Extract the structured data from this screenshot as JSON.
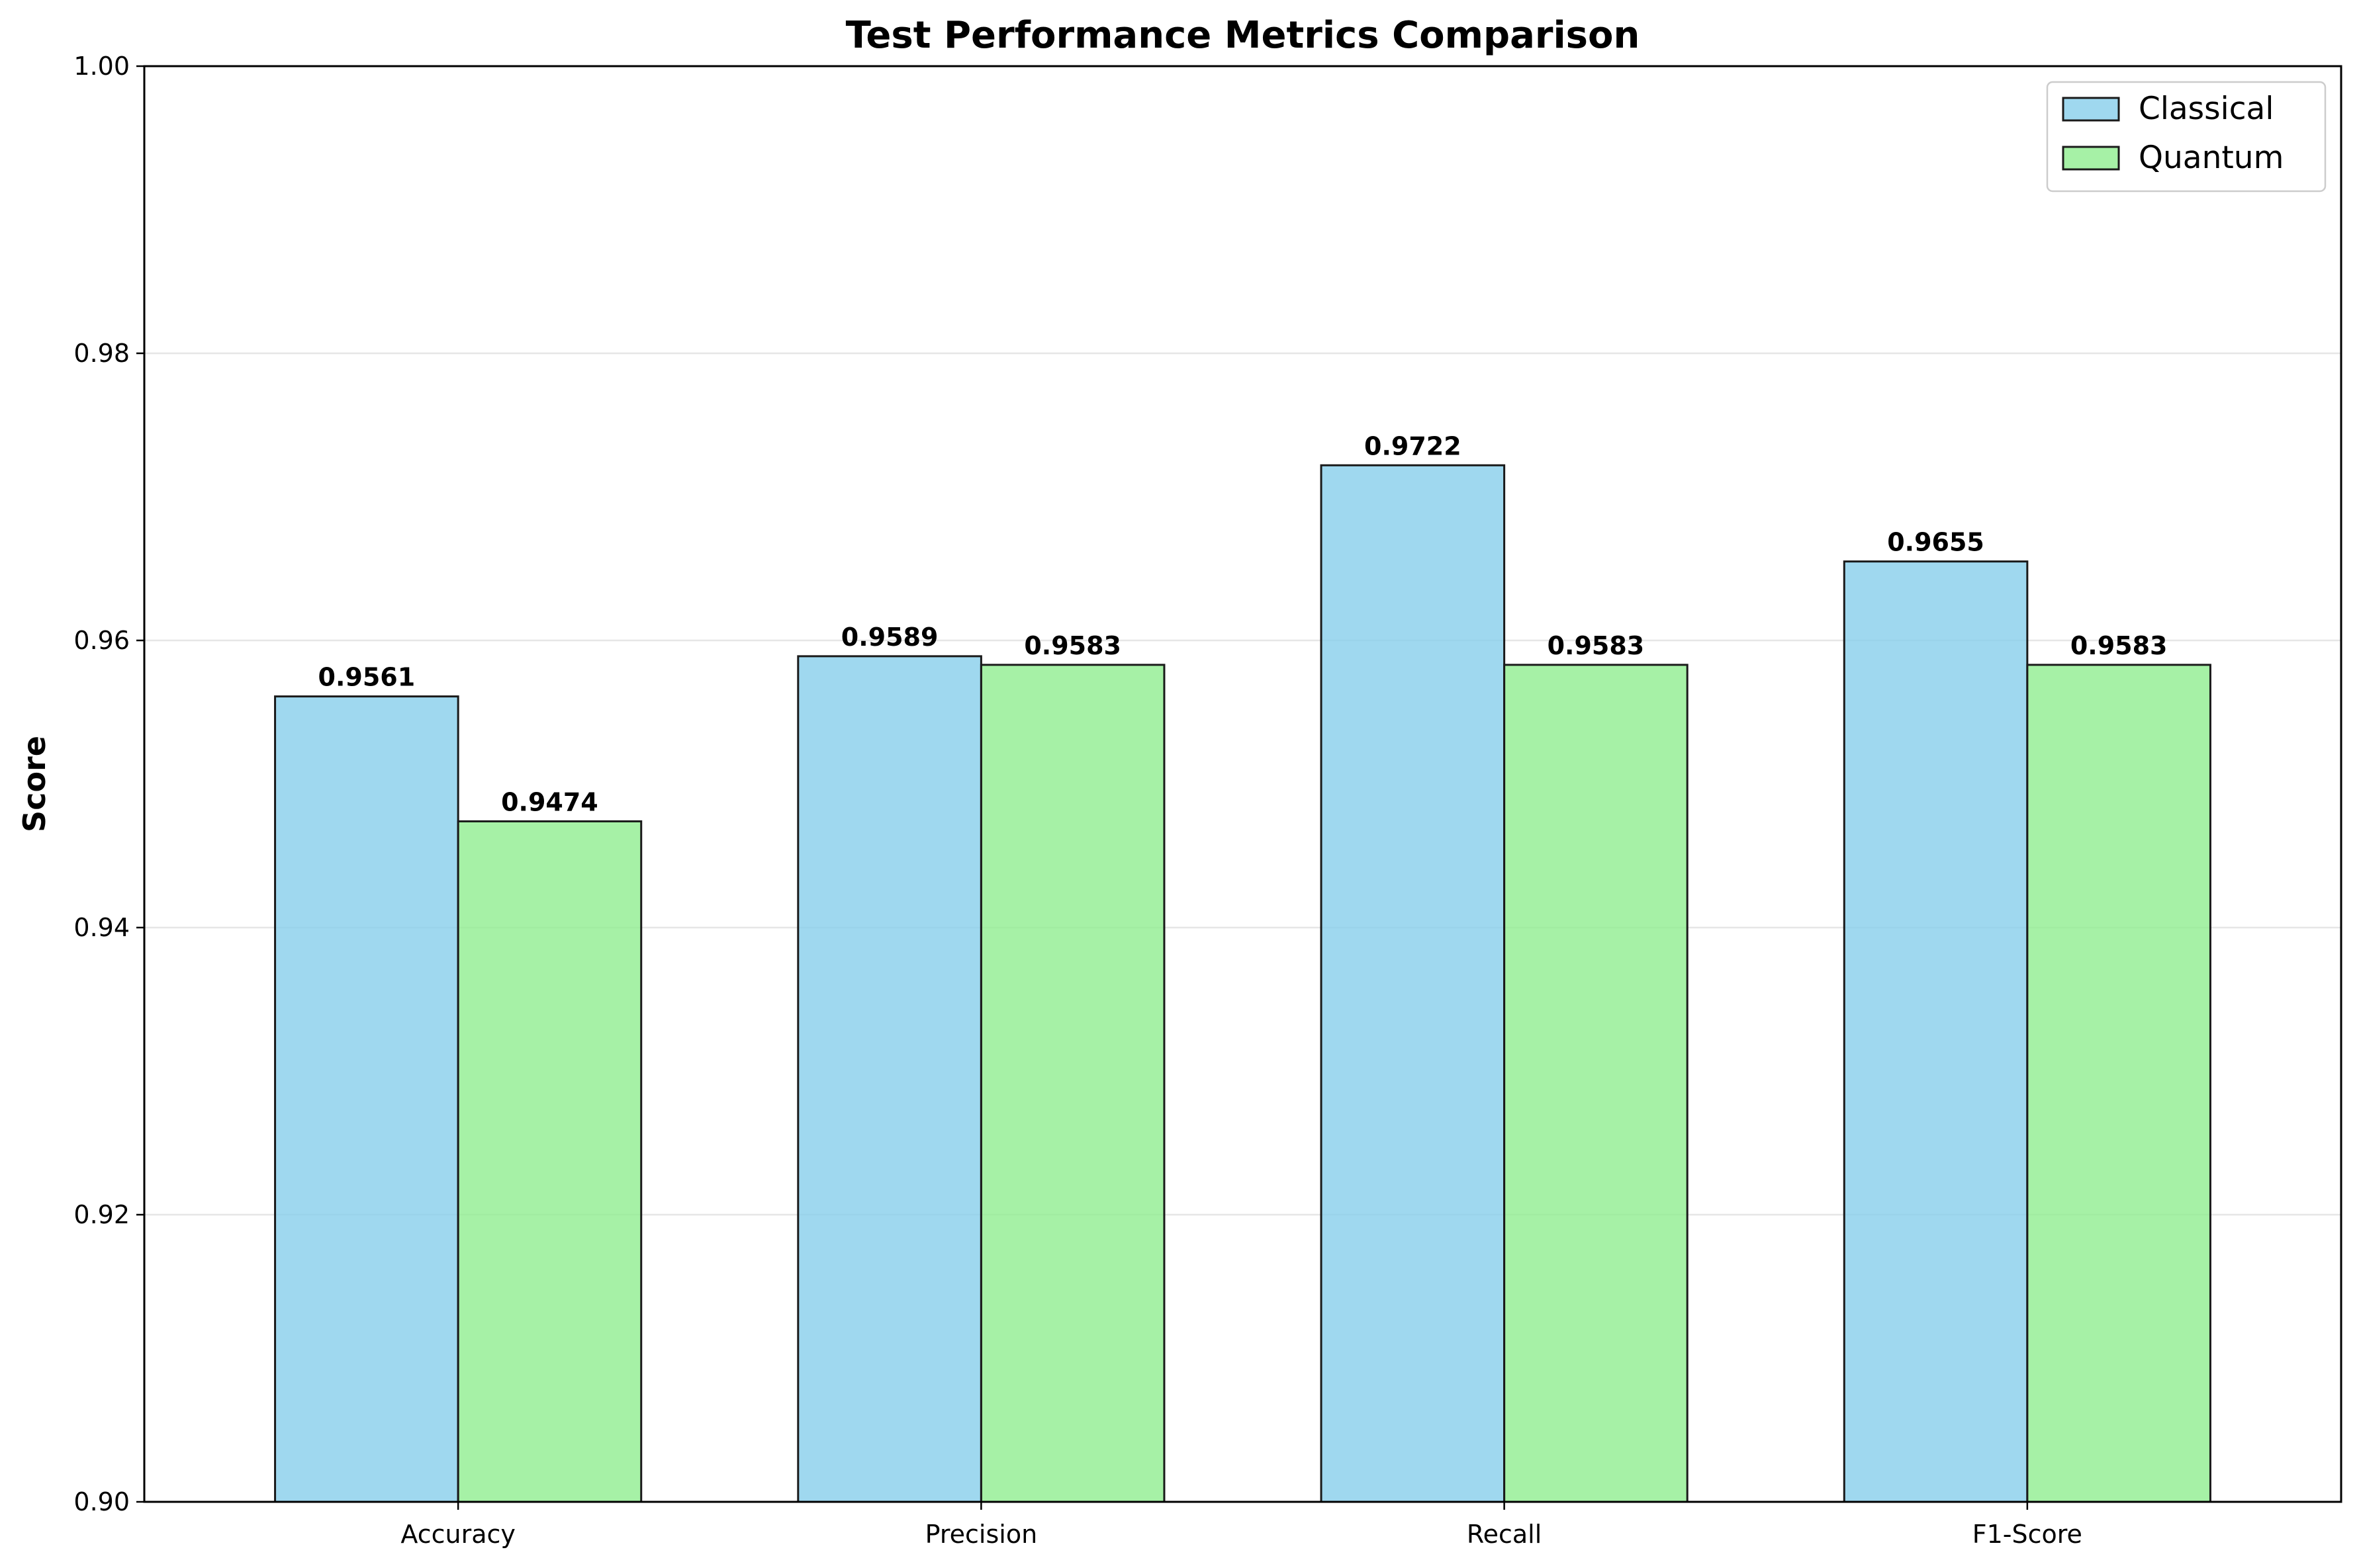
{
  "chart_data": {
    "type": "bar",
    "title": "Test Performance Metrics Comparison",
    "xlabel": "",
    "ylabel": "Score",
    "ylim": [
      0.9,
      1.0
    ],
    "yticks": [
      "0.90",
      "0.92",
      "0.94",
      "0.96",
      "0.98",
      "1.00"
    ],
    "categories": [
      "Accuracy",
      "Precision",
      "Recall",
      "F1-Score"
    ],
    "series": [
      {
        "name": "Classical",
        "color": "#87ceeb",
        "values": [
          0.9561,
          0.9589,
          0.9722,
          0.9655
        ],
        "labels": [
          "0.9561",
          "0.9589",
          "0.9722",
          "0.9655"
        ]
      },
      {
        "name": "Quantum",
        "color": "#90ee90",
        "values": [
          0.9474,
          0.9583,
          0.9583,
          0.9583
        ],
        "labels": [
          "0.9474",
          "0.9583",
          "0.9583",
          "0.9583"
        ]
      }
    ],
    "grid": "y",
    "legend_position": "top-right"
  }
}
